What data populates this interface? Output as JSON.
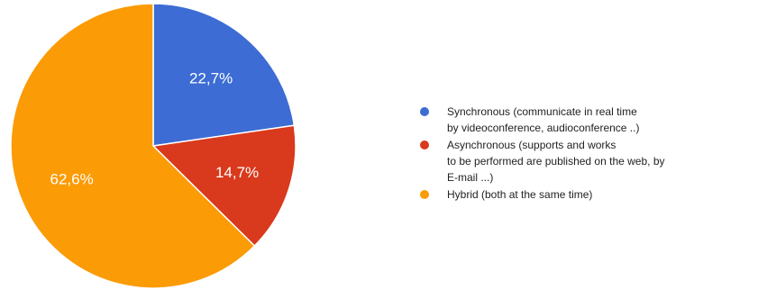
{
  "chart_data": {
    "type": "pie",
    "slices": [
      {
        "label": "Synchronous (communicate in real time\nby videoconference, audioconference ..)",
        "value": 22.7,
        "value_label": "22,7%",
        "color": "#3c6cd4"
      },
      {
        "label": "Asynchronous (supports and works\nto be performed are published on the web, by\nE-mail ...)",
        "value": 14.7,
        "value_label": "14,7%",
        "color": "#d9391c"
      },
      {
        "label": "Hybrid (both at the same time)",
        "value": 62.6,
        "value_label": "62,6%",
        "color": "#fb9b05"
      }
    ],
    "start_angle_deg": 90,
    "direction": "clockwise",
    "legend_position": "right"
  }
}
